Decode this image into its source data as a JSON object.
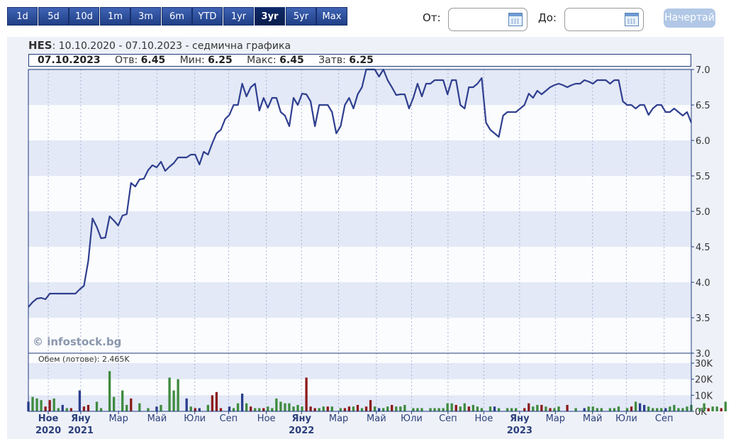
{
  "toolbar": {
    "ranges": [
      "1d",
      "5d",
      "10d",
      "1m",
      "3m",
      "6m",
      "YTD",
      "1yr",
      "3yr",
      "5yr",
      "Max"
    ],
    "active_range": "3yr",
    "from_label": "От:",
    "to_label": "До:",
    "from_value": "",
    "to_value": "",
    "draw_label": "Начертай"
  },
  "header": {
    "ticker": "HES",
    "period": ": 10.10.2020 - 07.10.2023 - седмична графика"
  },
  "quote": {
    "date": "07.10.2023",
    "open_label": "Отв:",
    "open": "6.45",
    "min_label": "Мин:",
    "min": "6.25",
    "max_label": "Макс:",
    "max": "6.45",
    "close_label": "Затв:",
    "close": "6.25"
  },
  "watermark": "© infostock.bg",
  "volume_label": "Обем (лотове): 2.465K",
  "colors": {
    "line": "#2f3f8f",
    "up": "#3e8a3e",
    "down": "#8b1a1a",
    "neutral": "#2a3d8c",
    "band": "#e3e9f6"
  },
  "chart_data": {
    "type": "line",
    "title": "HES",
    "ylim": [
      3.0,
      7.0
    ],
    "y_ticks": [
      "7.0",
      "6.5",
      "6.0",
      "5.5",
      "5.0",
      "4.5",
      "4.0",
      "3.5",
      "3.0"
    ],
    "x_tick_labels": [
      "Ное",
      "Яну",
      "Мар",
      "Май",
      "Юли",
      "Сеп",
      "Ное",
      "Яну",
      "Мар",
      "Май",
      "Юли",
      "Сеп",
      "Ное",
      "Яну",
      "Мар",
      "Май",
      "Юли",
      "Сеп"
    ],
    "x_year_labels": [
      {
        "under": 0,
        "text": "2020"
      },
      {
        "under": 1,
        "text": "2021"
      },
      {
        "under": 7,
        "text": "2022"
      },
      {
        "under": 13,
        "text": "2023"
      }
    ],
    "bold_ticks": [
      0,
      1,
      7,
      13
    ],
    "series": [
      {
        "values": [
          3.65,
          3.72,
          3.77,
          3.78,
          3.76,
          3.84,
          3.84,
          3.84,
          3.84,
          3.84,
          3.84,
          3.84,
          3.9,
          3.95,
          4.3,
          4.9,
          4.78,
          4.62,
          4.63,
          4.93,
          4.87,
          4.8,
          4.94,
          4.96,
          5.4,
          5.35,
          5.45,
          5.46,
          5.58,
          5.65,
          5.62,
          5.7,
          5.57,
          5.63,
          5.68,
          5.76,
          5.76,
          5.76,
          5.8,
          5.8,
          5.66,
          5.84,
          5.8,
          5.96,
          6.1,
          6.15,
          6.3,
          6.36,
          6.5,
          6.5,
          6.8,
          6.62,
          6.75,
          6.8,
          6.42,
          6.6,
          6.46,
          6.6,
          6.6,
          6.4,
          6.35,
          6.2,
          6.6,
          6.5,
          6.66,
          6.65,
          6.55,
          6.2,
          6.5,
          6.5,
          6.5,
          6.4,
          6.1,
          6.2,
          6.5,
          6.6,
          6.45,
          6.65,
          6.75,
          7.0,
          7.0,
          7.0,
          6.9,
          7.0,
          6.85,
          6.75,
          6.64,
          6.65,
          6.65,
          6.45,
          6.6,
          6.8,
          6.62,
          6.8,
          6.8,
          6.85,
          6.85,
          6.85,
          6.65,
          6.85,
          6.85,
          6.5,
          6.45,
          6.75,
          6.75,
          6.8,
          6.88,
          6.25,
          6.15,
          6.1,
          6.05,
          6.35,
          6.4,
          6.4,
          6.4,
          6.45,
          6.5,
          6.66,
          6.6,
          6.7,
          6.65,
          6.7,
          6.75,
          6.78,
          6.8,
          6.78,
          6.75,
          6.78,
          6.8,
          6.8,
          6.85,
          6.83,
          6.8,
          6.85,
          6.85,
          6.85,
          6.8,
          6.85,
          6.85,
          6.55,
          6.5,
          6.5,
          6.45,
          6.5,
          6.5,
          6.36,
          6.45,
          6.5,
          6.5,
          6.4,
          6.4,
          6.45,
          6.4,
          6.35,
          6.4,
          6.25
        ]
      }
    ],
    "volume": {
      "ylim": [
        0,
        30
      ],
      "unit": "K",
      "y_ticks": [
        "30K",
        "20K",
        "10K",
        "0K"
      ],
      "bars": [
        {
          "i": 0,
          "v": 6,
          "c": "neutral"
        },
        {
          "i": 1,
          "v": 9,
          "c": "up"
        },
        {
          "i": 2,
          "v": 8,
          "c": "up"
        },
        {
          "i": 3,
          "v": 7,
          "c": "up"
        },
        {
          "i": 4,
          "v": 3,
          "c": "down"
        },
        {
          "i": 5,
          "v": 7,
          "c": "down"
        },
        {
          "i": 6,
          "v": 8,
          "c": "up"
        },
        {
          "i": 7,
          "v": 2,
          "c": "up"
        },
        {
          "i": 8,
          "v": 4,
          "c": "neutral"
        },
        {
          "i": 9,
          "v": 2,
          "c": "up"
        },
        {
          "i": 10,
          "v": 2,
          "c": "down"
        },
        {
          "i": 12,
          "v": 13,
          "c": "neutral"
        },
        {
          "i": 13,
          "v": 3,
          "c": "down"
        },
        {
          "i": 14,
          "v": 4,
          "c": "down"
        },
        {
          "i": 16,
          "v": 6,
          "c": "up"
        },
        {
          "i": 17,
          "v": 2,
          "c": "up"
        },
        {
          "i": 19,
          "v": 25,
          "c": "up"
        },
        {
          "i": 20,
          "v": 9,
          "c": "up"
        },
        {
          "i": 22,
          "v": 13,
          "c": "up"
        },
        {
          "i": 23,
          "v": 4,
          "c": "up"
        },
        {
          "i": 24,
          "v": 8,
          "c": "down"
        },
        {
          "i": 26,
          "v": 5,
          "c": "up"
        },
        {
          "i": 28,
          "v": 2,
          "c": "up"
        },
        {
          "i": 30,
          "v": 3,
          "c": "neutral"
        },
        {
          "i": 31,
          "v": 4,
          "c": "up"
        },
        {
          "i": 33,
          "v": 21,
          "c": "up"
        },
        {
          "i": 34,
          "v": 13,
          "c": "up"
        },
        {
          "i": 35,
          "v": 20,
          "c": "up"
        },
        {
          "i": 37,
          "v": 8,
          "c": "neutral"
        },
        {
          "i": 38,
          "v": 3,
          "c": "up"
        },
        {
          "i": 39,
          "v": 2,
          "c": "down"
        },
        {
          "i": 40,
          "v": 2,
          "c": "neutral"
        },
        {
          "i": 42,
          "v": 4,
          "c": "up"
        },
        {
          "i": 43,
          "v": 10,
          "c": "down"
        },
        {
          "i": 44,
          "v": 12,
          "c": "down"
        },
        {
          "i": 45,
          "v": 2,
          "c": "down"
        },
        {
          "i": 47,
          "v": 3,
          "c": "neutral"
        },
        {
          "i": 48,
          "v": 2,
          "c": "up"
        },
        {
          "i": 49,
          "v": 5,
          "c": "up"
        },
        {
          "i": 50,
          "v": 11,
          "c": "neutral"
        },
        {
          "i": 51,
          "v": 5,
          "c": "up"
        },
        {
          "i": 52,
          "v": 3,
          "c": "down"
        },
        {
          "i": 53,
          "v": 2,
          "c": "up"
        },
        {
          "i": 54,
          "v": 2,
          "c": "up"
        },
        {
          "i": 55,
          "v": 2,
          "c": "down"
        },
        {
          "i": 56,
          "v": 3,
          "c": "up"
        },
        {
          "i": 57,
          "v": 2,
          "c": "up"
        },
        {
          "i": 58,
          "v": 8,
          "c": "up"
        },
        {
          "i": 59,
          "v": 6,
          "c": "up"
        },
        {
          "i": 60,
          "v": 5,
          "c": "up"
        },
        {
          "i": 61,
          "v": 5,
          "c": "up"
        },
        {
          "i": 62,
          "v": 3,
          "c": "up"
        },
        {
          "i": 63,
          "v": 4,
          "c": "up"
        },
        {
          "i": 64,
          "v": 3,
          "c": "up"
        },
        {
          "i": 65,
          "v": 21,
          "c": "down"
        },
        {
          "i": 66,
          "v": 3,
          "c": "down"
        },
        {
          "i": 67,
          "v": 2,
          "c": "down"
        },
        {
          "i": 68,
          "v": 2,
          "c": "up"
        },
        {
          "i": 69,
          "v": 3,
          "c": "up"
        },
        {
          "i": 70,
          "v": 3,
          "c": "down"
        },
        {
          "i": 71,
          "v": 3,
          "c": "up"
        },
        {
          "i": 73,
          "v": 2,
          "c": "up"
        },
        {
          "i": 74,
          "v": 2,
          "c": "down"
        },
        {
          "i": 75,
          "v": 3,
          "c": "down"
        },
        {
          "i": 76,
          "v": 3,
          "c": "up"
        },
        {
          "i": 77,
          "v": 4,
          "c": "down"
        },
        {
          "i": 78,
          "v": 2,
          "c": "up"
        },
        {
          "i": 79,
          "v": 3,
          "c": "down"
        },
        {
          "i": 80,
          "v": 7,
          "c": "down"
        },
        {
          "i": 81,
          "v": 3,
          "c": "up"
        },
        {
          "i": 82,
          "v": 2,
          "c": "neutral"
        },
        {
          "i": 83,
          "v": 2,
          "c": "up"
        },
        {
          "i": 84,
          "v": 3,
          "c": "up"
        },
        {
          "i": 85,
          "v": 4,
          "c": "down"
        },
        {
          "i": 86,
          "v": 3,
          "c": "up"
        },
        {
          "i": 87,
          "v": 3,
          "c": "up"
        },
        {
          "i": 88,
          "v": 4,
          "c": "up"
        },
        {
          "i": 90,
          "v": 2,
          "c": "up"
        },
        {
          "i": 91,
          "v": 2,
          "c": "up"
        },
        {
          "i": 92,
          "v": 2,
          "c": "up"
        },
        {
          "i": 94,
          "v": 2,
          "c": "up"
        },
        {
          "i": 95,
          "v": 2,
          "c": "up"
        },
        {
          "i": 96,
          "v": 2,
          "c": "up"
        },
        {
          "i": 97,
          "v": 2,
          "c": "up"
        },
        {
          "i": 98,
          "v": 5,
          "c": "up"
        },
        {
          "i": 99,
          "v": 5,
          "c": "up"
        },
        {
          "i": 100,
          "v": 4,
          "c": "down"
        },
        {
          "i": 101,
          "v": 3,
          "c": "up"
        },
        {
          "i": 102,
          "v": 5,
          "c": "up"
        },
        {
          "i": 103,
          "v": 3,
          "c": "down"
        },
        {
          "i": 104,
          "v": 4,
          "c": "up"
        },
        {
          "i": 105,
          "v": 3,
          "c": "up"
        },
        {
          "i": 106,
          "v": 2,
          "c": "up"
        },
        {
          "i": 108,
          "v": 3,
          "c": "up"
        },
        {
          "i": 109,
          "v": 3,
          "c": "neutral"
        },
        {
          "i": 110,
          "v": 2,
          "c": "up"
        },
        {
          "i": 112,
          "v": 2,
          "c": "up"
        },
        {
          "i": 113,
          "v": 2,
          "c": "up"
        },
        {
          "i": 114,
          "v": 2,
          "c": "up"
        },
        {
          "i": 116,
          "v": 2,
          "c": "down"
        },
        {
          "i": 117,
          "v": 5,
          "c": "down"
        },
        {
          "i": 118,
          "v": 3,
          "c": "up"
        },
        {
          "i": 119,
          "v": 4,
          "c": "up"
        },
        {
          "i": 120,
          "v": 4,
          "c": "down"
        },
        {
          "i": 121,
          "v": 3,
          "c": "up"
        },
        {
          "i": 122,
          "v": 2,
          "c": "down"
        },
        {
          "i": 123,
          "v": 2,
          "c": "up"
        },
        {
          "i": 124,
          "v": 3,
          "c": "up"
        },
        {
          "i": 126,
          "v": 4,
          "c": "down"
        },
        {
          "i": 128,
          "v": 2,
          "c": "up"
        },
        {
          "i": 130,
          "v": 2,
          "c": "neutral"
        },
        {
          "i": 131,
          "v": 3,
          "c": "up"
        },
        {
          "i": 132,
          "v": 3,
          "c": "up"
        },
        {
          "i": 133,
          "v": 2,
          "c": "up"
        },
        {
          "i": 134,
          "v": 2,
          "c": "up"
        },
        {
          "i": 136,
          "v": 2,
          "c": "up"
        },
        {
          "i": 137,
          "v": 2,
          "c": "up"
        },
        {
          "i": 138,
          "v": 3,
          "c": "up"
        },
        {
          "i": 140,
          "v": 2,
          "c": "up"
        },
        {
          "i": 141,
          "v": 3,
          "c": "down"
        },
        {
          "i": 142,
          "v": 6,
          "c": "up"
        },
        {
          "i": 143,
          "v": 5,
          "c": "neutral"
        },
        {
          "i": 144,
          "v": 4,
          "c": "neutral"
        },
        {
          "i": 145,
          "v": 3,
          "c": "up"
        },
        {
          "i": 146,
          "v": 2,
          "c": "up"
        },
        {
          "i": 147,
          "v": 2,
          "c": "up"
        },
        {
          "i": 148,
          "v": 2,
          "c": "up"
        },
        {
          "i": 149,
          "v": 2,
          "c": "neutral"
        },
        {
          "i": 150,
          "v": 3,
          "c": "up"
        },
        {
          "i": 151,
          "v": 4,
          "c": "up"
        },
        {
          "i": 152,
          "v": 2,
          "c": "up"
        },
        {
          "i": 153,
          "v": 2,
          "c": "up"
        },
        {
          "i": 154,
          "v": 3,
          "c": "up"
        },
        {
          "i": 155,
          "v": 4,
          "c": "up"
        },
        {
          "i": 157,
          "v": 2,
          "c": "up"
        },
        {
          "i": 158,
          "v": 5,
          "c": "up"
        },
        {
          "i": 159,
          "v": 2,
          "c": "down"
        },
        {
          "i": 160,
          "v": 3,
          "c": "up"
        },
        {
          "i": 161,
          "v": 3,
          "c": "up"
        },
        {
          "i": 162,
          "v": 2,
          "c": "down"
        },
        {
          "i": 163,
          "v": 6,
          "c": "up"
        }
      ]
    }
  }
}
